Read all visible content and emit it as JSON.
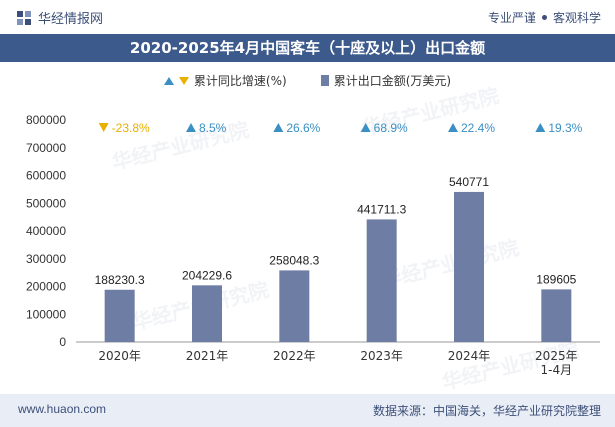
{
  "header": {
    "brand": "华经情报网",
    "slogan_left": "专业严谨",
    "slogan_right": "客观科学"
  },
  "title": "2020-2025年4月中国客车（十座及以上）出口金额",
  "legend": {
    "growth_label": "累计同比增速(%)",
    "amount_label": "累计出口金额(万美元)"
  },
  "watermark": "华经产业研究院",
  "footer": {
    "url": "www.huaon.com",
    "source": "数据来源：中国海关，华经产业研究院整理"
  },
  "colors": {
    "bar": "#6e7da3",
    "up": "#3a8fc4",
    "down": "#e8b000",
    "title_bg": "#3d5a8c"
  },
  "chart_data": {
    "type": "bar",
    "categories": [
      "2020年",
      "2021年",
      "2022年",
      "2023年",
      "2024年",
      "2025年\n1-4月"
    ],
    "series": [
      {
        "name": "累计出口金额(万美元)",
        "values": [
          188230.3,
          204229.6,
          258048.3,
          441711.3,
          540771,
          189605
        ],
        "labels": [
          "188230.3",
          "204229.6",
          "258048.3",
          "441711.3",
          "540771",
          "189605"
        ]
      },
      {
        "name": "累计同比增速(%)",
        "values": [
          -23.8,
          8.5,
          26.6,
          68.9,
          22.4,
          19.3
        ],
        "labels": [
          "-23.8%",
          "8.5%",
          "26.6%",
          "68.9%",
          "22.4%",
          "19.3%"
        ]
      }
    ],
    "yticks": [
      "0",
      "100000",
      "200000",
      "300000",
      "400000",
      "500000",
      "600000",
      "700000",
      "800000"
    ],
    "ylim": [
      0,
      800000
    ]
  }
}
